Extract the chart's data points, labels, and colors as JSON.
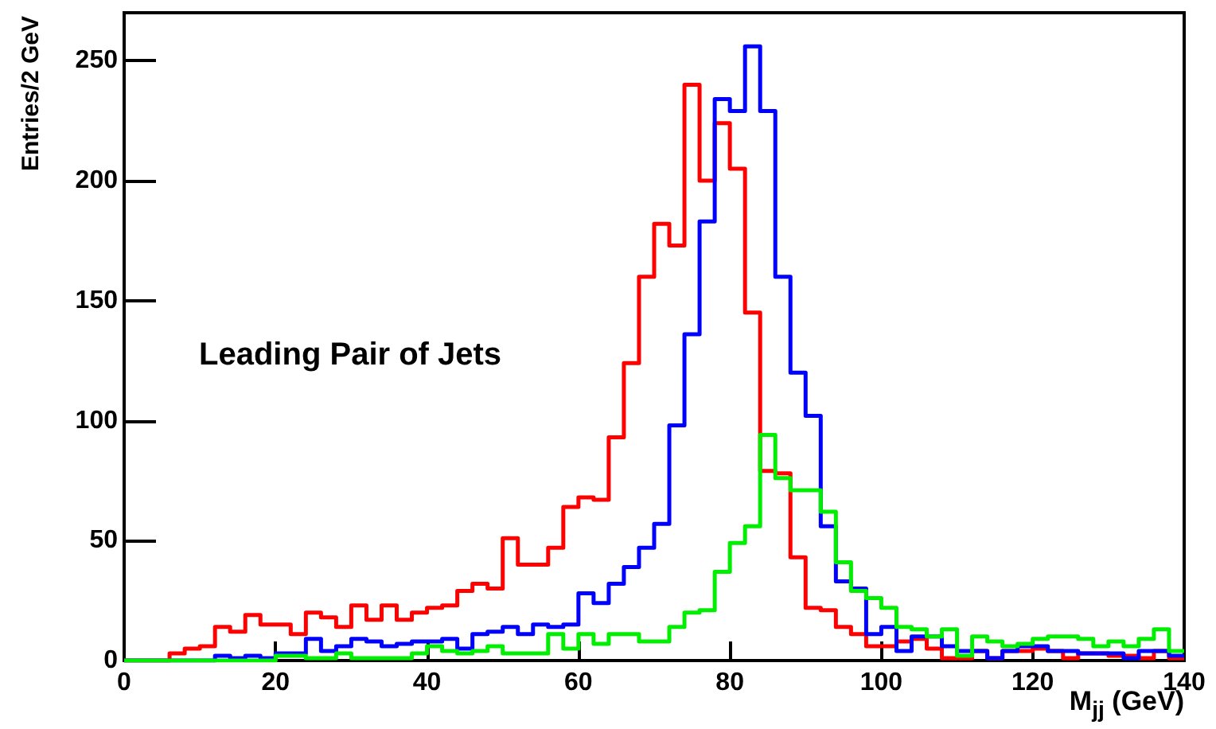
{
  "chart_data": {
    "type": "histogram",
    "xlabel": "M$_{jj}$ (GeV)",
    "ylabel": "Entries/2 GeV",
    "annotations": [
      "Leading Pair of Jets"
    ],
    "bins": [
      0,
      2,
      4,
      6,
      8,
      10,
      12,
      14,
      16,
      18,
      20,
      22,
      24,
      26,
      28,
      30,
      32,
      34,
      36,
      38,
      40,
      42,
      44,
      46,
      48,
      50,
      52,
      54,
      56,
      58,
      60,
      62,
      64,
      66,
      68,
      70,
      72,
      74,
      76,
      78,
      80,
      82,
      84,
      86,
      88,
      90,
      92,
      94,
      96,
      98,
      100,
      102,
      104,
      106,
      108,
      110,
      112,
      114,
      116,
      118,
      120,
      122,
      124,
      126,
      128,
      130,
      132,
      134,
      136,
      138,
      140
    ],
    "series": [
      {
        "color": "#ff0000",
        "values": [
          0,
          0,
          0,
          3,
          5,
          6,
          14,
          12,
          19,
          15,
          15,
          11,
          20,
          18,
          14,
          23,
          17,
          23,
          17,
          20,
          22,
          23,
          29,
          32,
          30,
          51,
          40,
          40,
          47,
          64,
          68,
          67,
          93,
          124,
          160,
          182,
          173,
          240,
          200,
          224,
          205,
          145,
          79,
          78,
          43,
          22,
          21,
          14,
          11,
          6,
          6,
          8,
          9,
          5,
          1,
          1,
          4,
          1,
          4,
          4,
          5,
          4,
          1,
          3,
          3,
          2,
          2,
          1,
          4,
          1
        ]
      },
      {
        "color": "#0000ff",
        "values": [
          0,
          0,
          0,
          0,
          0,
          0,
          2,
          1,
          2,
          1,
          3,
          3,
          9,
          4,
          6,
          9,
          8,
          6,
          7,
          8,
          8,
          9,
          5,
          11,
          12,
          14,
          11,
          15,
          14,
          15,
          28,
          24,
          32,
          39,
          47,
          57,
          98,
          136,
          183,
          234,
          229,
          256,
          229,
          160,
          120,
          102,
          56,
          33,
          30,
          11,
          14,
          4,
          10,
          10,
          6,
          4,
          4,
          1,
          4,
          6,
          6,
          4,
          4,
          3,
          3,
          3,
          1,
          4,
          4,
          2
        ]
      },
      {
        "color": "#00ee00",
        "values": [
          0,
          0,
          0,
          0,
          0,
          0,
          0,
          0,
          0,
          0,
          2,
          2,
          1,
          1,
          3,
          1,
          1,
          1,
          1,
          3,
          6,
          4,
          3,
          4,
          6,
          3,
          3,
          3,
          11,
          5,
          11,
          7,
          11,
          11,
          8,
          8,
          14,
          20,
          21,
          37,
          49,
          56,
          94,
          76,
          71,
          71,
          62,
          41,
          29,
          26,
          22,
          14,
          13,
          10,
          13,
          2,
          10,
          8,
          6,
          7,
          9,
          10,
          10,
          9,
          6,
          8,
          6,
          9,
          13,
          4
        ]
      }
    ],
    "xlim": [
      0,
      140
    ],
    "xticks": [
      0,
      20,
      40,
      60,
      80,
      100,
      120,
      140
    ],
    "ylim": [
      0,
      270
    ],
    "yticks": [
      0,
      50,
      100,
      150,
      200,
      250
    ],
    "grid": false,
    "line_style": "solid",
    "marker": "none"
  }
}
